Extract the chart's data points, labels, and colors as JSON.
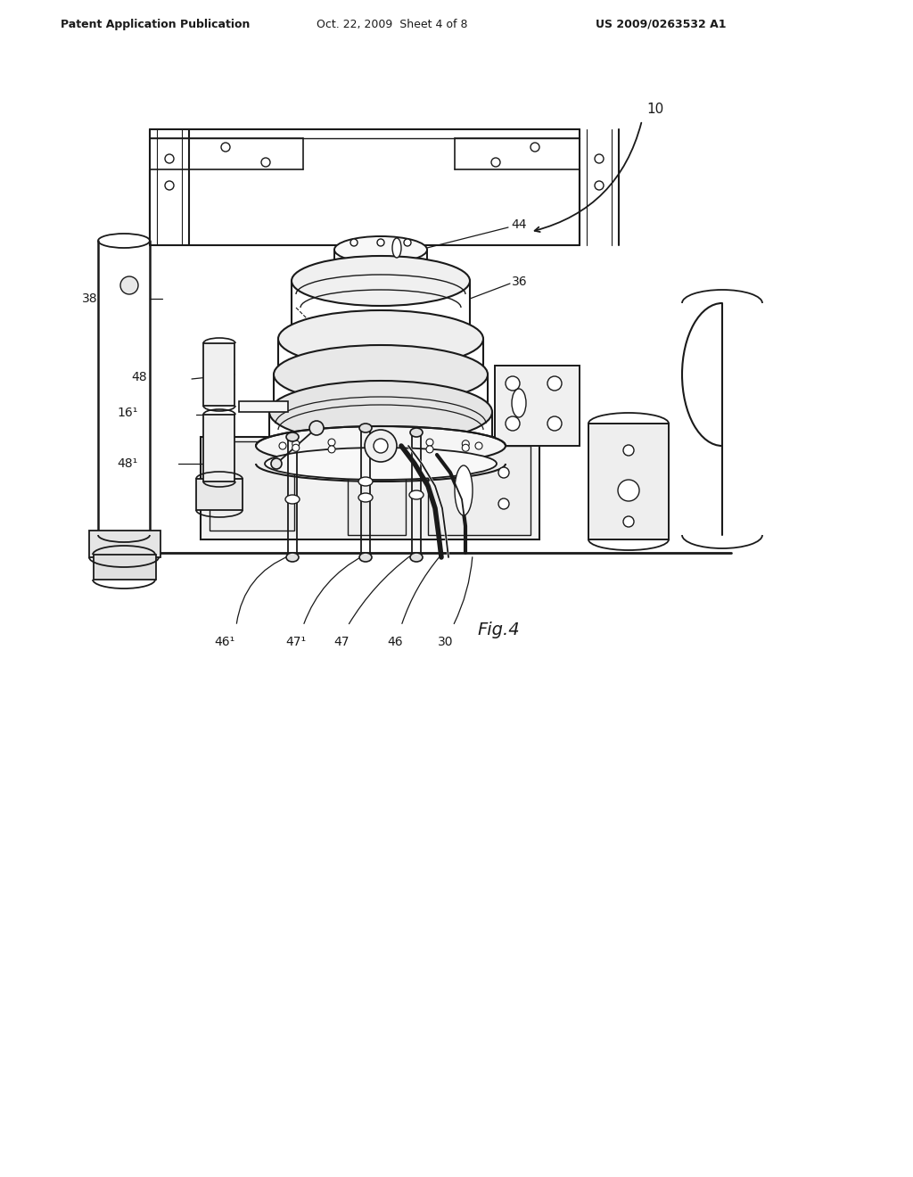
{
  "bg_color": "#ffffff",
  "header_left": "Patent Application Publication",
  "header_center": "Oct. 22, 2009  Sheet 4 of 8",
  "header_right": "US 2009/0263532 A1",
  "fig_label": "Fig.4",
  "ref_10": "10",
  "ref_36": "36",
  "ref_44": "44",
  "ref_38": "38",
  "ref_48": "48",
  "ref_48p": "48¹",
  "ref_16p": "16¹",
  "ref_30": "30",
  "ref_46": "46",
  "ref_46p": "46¹",
  "ref_47": "47",
  "ref_47p": "47¹",
  "line_color": "#1a1a1a",
  "line_width": 1.3,
  "title_fontsize": 9,
  "label_fontsize": 10,
  "fig_label_fontsize": 14
}
